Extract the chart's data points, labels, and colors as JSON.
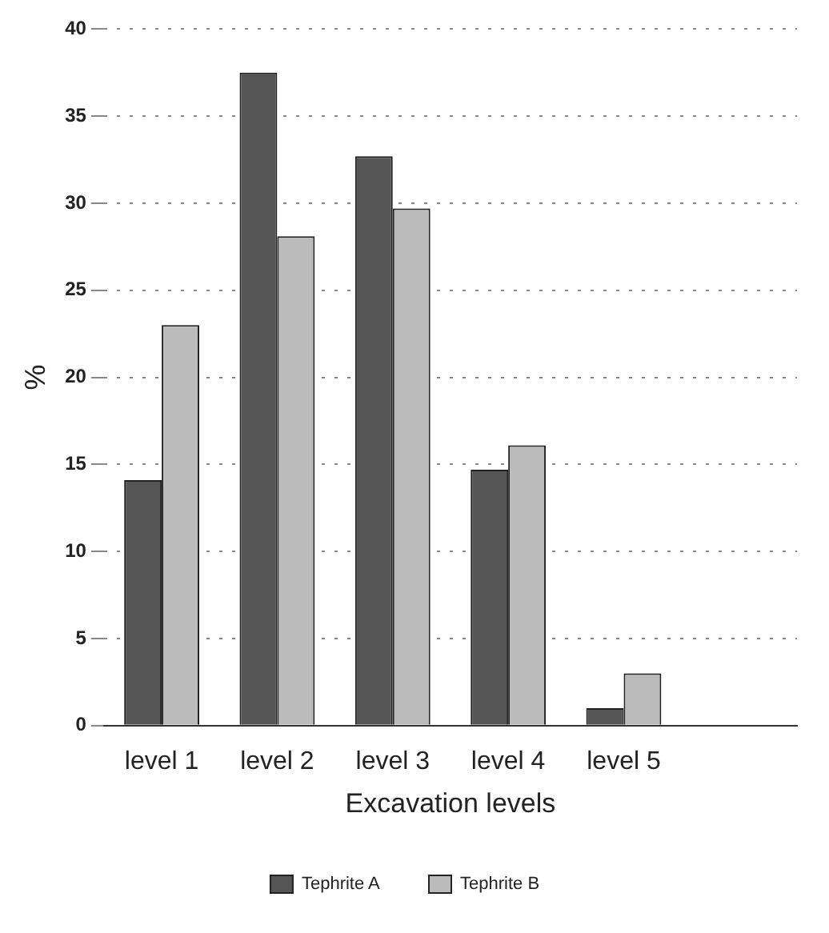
{
  "chart_data": {
    "type": "bar",
    "xlabel": "Excavation levels",
    "ylabel": "%",
    "categories": [
      "level 1",
      "level 2",
      "level 3",
      "level 4",
      "level 5",
      null
    ],
    "series": [
      {
        "name": "Tephrite A",
        "color": "#555555",
        "values": [
          14.1,
          37.5,
          32.7,
          14.7,
          1.0,
          0
        ]
      },
      {
        "name": "Tephrite B",
        "color": "#bbbbbb",
        "values": [
          23.0,
          28.1,
          29.7,
          16.1,
          3.0,
          0
        ]
      }
    ],
    "ylim": [
      0,
      40
    ],
    "yticks": [
      0,
      5,
      10,
      15,
      20,
      25,
      30,
      35,
      40
    ],
    "grid": "y",
    "legend": "bottom"
  }
}
